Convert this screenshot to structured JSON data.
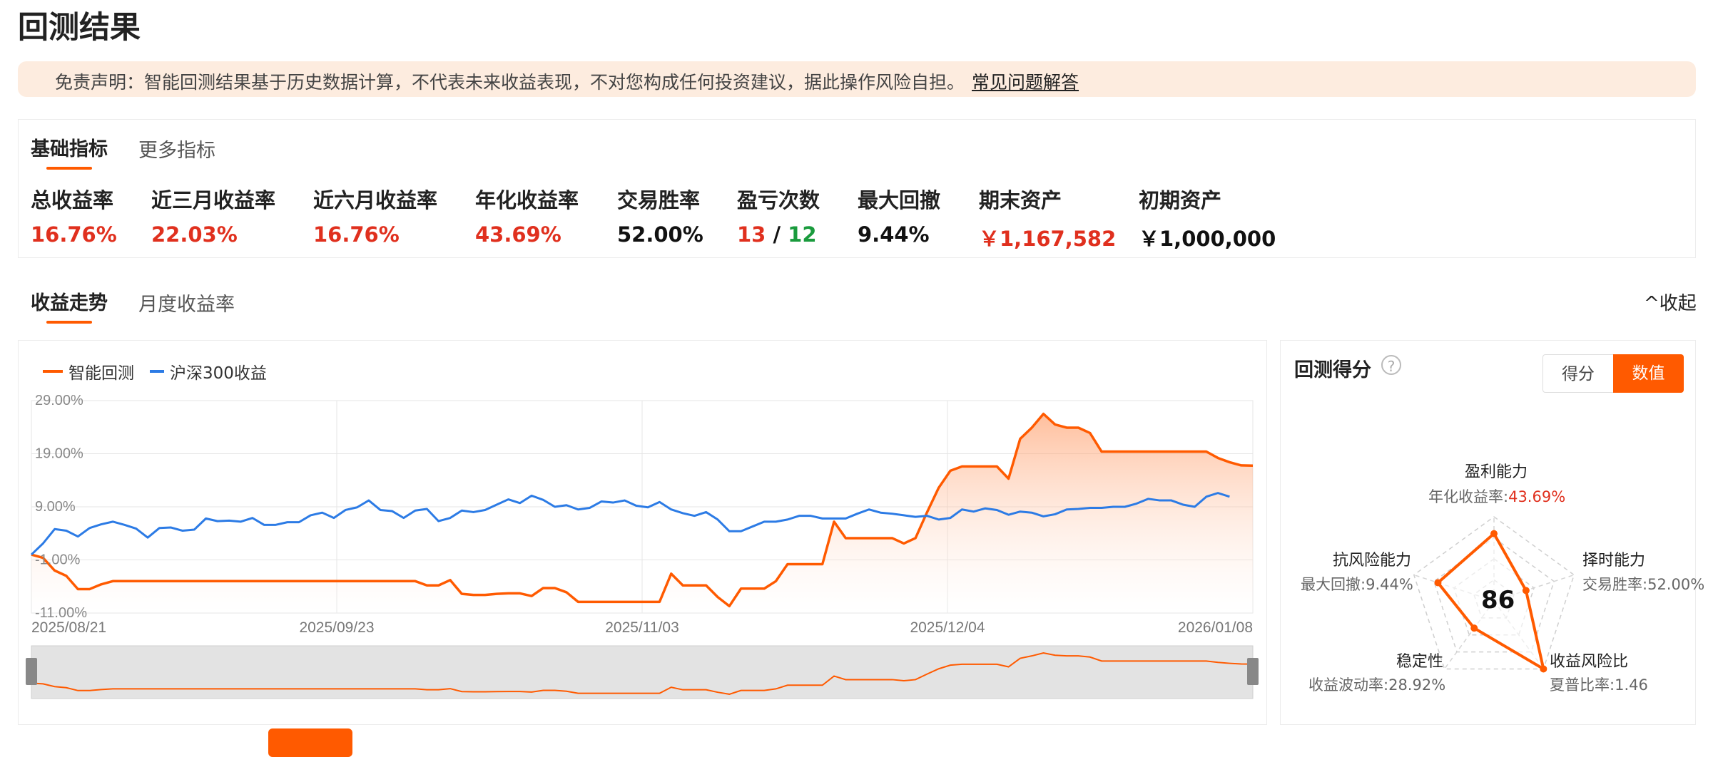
{
  "page": {
    "title": "回测结果"
  },
  "disclaimer": {
    "text": "免责声明：智能回测结果基于历史数据计算，不代表未来收益表现，不对您构成任何投资建议，据此操作风险自担。",
    "faq_link": "常见问题解答"
  },
  "metrics_tabs": {
    "basic": "基础指标",
    "more": "更多指标"
  },
  "metrics": [
    {
      "label": "总收益率",
      "value": "16.76%",
      "color": "red"
    },
    {
      "label": "近三月收益率",
      "value": "22.03%",
      "color": "red"
    },
    {
      "label": "近六月收益率",
      "value": "16.76%",
      "color": "red"
    },
    {
      "label": "年化收益率",
      "value": "43.69%",
      "color": "red"
    },
    {
      "label": "交易胜率",
      "value": "52.00%",
      "color": "black"
    },
    {
      "label": "盈亏次数",
      "wins": "13",
      "sep": "/",
      "losses": "12"
    },
    {
      "label": "最大回撤",
      "value": "9.44%",
      "color": "black"
    },
    {
      "label": "期末资产",
      "value": "￥1,167,582",
      "color": "red"
    },
    {
      "label": "初期资产",
      "value": "￥1,000,000",
      "color": "black"
    }
  ],
  "trend_tabs": {
    "trend": "收益走势",
    "monthly": "月度收益率",
    "collapse": "收起"
  },
  "chart_data": {
    "type": "line",
    "series": [
      {
        "name": "智能回测",
        "color": "#ff5a00",
        "values": [
          0,
          -0.6,
          -3,
          -4,
          -6.5,
          -6.5,
          -5.6,
          -5,
          -5,
          -5,
          -5,
          -5,
          -5,
          -5,
          -5,
          -5,
          -5,
          -5,
          -5,
          -5,
          -5,
          -5,
          -5,
          -5,
          -5,
          -5,
          -5,
          -5,
          -5,
          -5,
          -5,
          -5,
          -5,
          -5,
          -5.8,
          -5.8,
          -4.8,
          -7.4,
          -7.6,
          -7.6,
          -7.4,
          -7.3,
          -7.3,
          -7.8,
          -6.3,
          -6.3,
          -7.1,
          -8.9,
          -8.9,
          -8.9,
          -8.9,
          -8.9,
          -8.9,
          -8.9,
          -8.9,
          -3.6,
          -5.8,
          -5.8,
          -5.8,
          -8,
          -9.7,
          -6.4,
          -6.4,
          -6.4,
          -5,
          -1.8,
          -1.8,
          -1.8,
          -1.8,
          6.2,
          3.1,
          3.1,
          3.1,
          3.1,
          3.1,
          2.1,
          3.1,
          8,
          12.6,
          15.8,
          16.6,
          16.6,
          16.6,
          16.6,
          14.3,
          21.8,
          23.9,
          26.5,
          24.5,
          23.9,
          23.9,
          22.9,
          19.4,
          19.4,
          19.4,
          19.4,
          19.4,
          19.4,
          19.4,
          19.4,
          19.4,
          19.4,
          18.2,
          17.4,
          16.8,
          16.76
        ]
      },
      {
        "name": "沪深300收益",
        "color": "#2c7be5",
        "values": [
          0,
          2.1,
          4.8,
          4.5,
          3.4,
          5,
          5.7,
          6.2,
          5.6,
          4.9,
          3.2,
          5,
          5.1,
          4.5,
          4.7,
          6.8,
          6.3,
          6.4,
          6.2,
          6.9,
          5.6,
          5.6,
          6.1,
          6.1,
          7.4,
          7.9,
          6.9,
          8.4,
          8.9,
          10.2,
          8.4,
          8.2,
          6.9,
          8.3,
          8.6,
          6.3,
          6.9,
          8.3,
          8,
          8.4,
          9.4,
          10.4,
          9.7,
          11.1,
          10.3,
          9,
          9.3,
          8.5,
          8.8,
          10,
          9.8,
          10.2,
          9.2,
          8.9,
          9.9,
          8.5,
          7.8,
          7.3,
          8,
          6.6,
          4.4,
          4.4,
          5.3,
          6.2,
          6.2,
          6.6,
          7.3,
          7.3,
          6.8,
          6.8,
          6.8,
          7.7,
          8.5,
          7.9,
          7.7,
          7.4,
          7.1,
          7.3,
          6.6,
          6.9,
          8.5,
          8.1,
          8.7,
          8.4,
          7.5,
          8.1,
          7.9,
          7.2,
          7.6,
          8.5,
          8.6,
          8.8,
          8.8,
          9,
          9,
          9.6,
          10.5,
          10.2,
          10.2,
          9.4,
          9,
          10.9,
          11.6,
          10.9
        ]
      }
    ],
    "x_ticks": [
      "2025/08/21",
      "2025/09/23",
      "2025/11/03",
      "2025/12/04",
      "2026/01/08"
    ],
    "y_ticks": [
      "29.00%",
      "19.00%",
      "9.00%",
      "-1.00%",
      "-11.00%"
    ],
    "ylim": [
      -11,
      29
    ],
    "y_unit": "%"
  },
  "score": {
    "title": "回测得分",
    "toggle_score": "得分",
    "toggle_value": "数值",
    "total": "86",
    "dimensions": [
      {
        "name": "盈利能力",
        "sub_label": "年化收益率:",
        "sub_value": "43.69%",
        "level": 0.8
      },
      {
        "name": "择时能力",
        "sub_label": "交易胜率:",
        "sub_value": "52.00%",
        "level": 0.4
      },
      {
        "name": "收益风险比",
        "sub_label": "夏普比率:",
        "sub_value": "1.46",
        "level": 1.0
      },
      {
        "name": "稳定性",
        "sub_label": "收益波动率:",
        "sub_value": "28.92%",
        "level": 0.4
      },
      {
        "name": "抗风险能力",
        "sub_label": "最大回撤:",
        "sub_value": "9.44%",
        "level": 0.7
      }
    ]
  }
}
